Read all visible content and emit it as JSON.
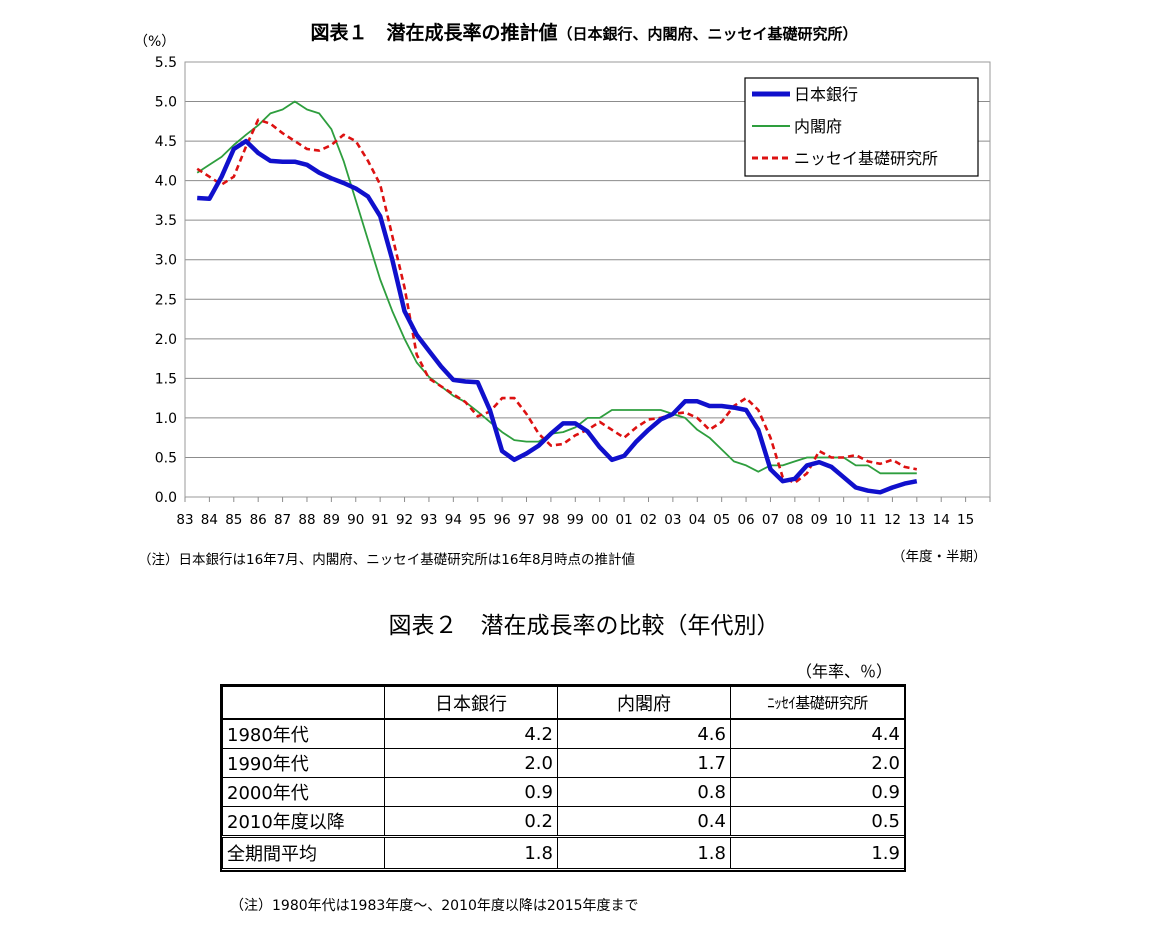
{
  "chart1": {
    "title_main": "図表１　潜在成長率の推計値",
    "title_sub": "（日本銀行、内閣府、ニッセイ基礎研究所）",
    "y_unit": "（%）",
    "x_unit": "（年度・半期）",
    "note": "（注）日本銀行は16年7月、内閣府、ニッセイ基礎研究所は16年8月時点の推計値",
    "colors": {
      "boj": "#1010cc",
      "cabinet": "#2e9e3e",
      "nissay": "#dd1111"
    }
  },
  "chart_data": {
    "type": "line",
    "x_tick_labels": [
      "83",
      "84",
      "85",
      "86",
      "87",
      "88",
      "89",
      "90",
      "91",
      "92",
      "93",
      "94",
      "95",
      "96",
      "97",
      "98",
      "99",
      "00",
      "01",
      "02",
      "03",
      "04",
      "05",
      "06",
      "07",
      "08",
      "09",
      "10",
      "11",
      "12",
      "13",
      "14",
      "15"
    ],
    "x_unit_note": "half-year index starting 1983H1",
    "ylim": [
      0,
      5.5
    ],
    "y_ticks": [
      "0.0",
      "0.5",
      "1.0",
      "1.5",
      "2.0",
      "2.5",
      "3.0",
      "3.5",
      "4.0",
      "4.5",
      "5.0",
      "5.5"
    ],
    "grid": true,
    "legend_position": "top-right",
    "series": [
      {
        "name": "日本銀行",
        "values": [
          3.78,
          3.77,
          4.05,
          4.4,
          4.5,
          4.35,
          4.25,
          4.24,
          4.24,
          4.2,
          4.1,
          4.03,
          3.97,
          3.9,
          3.8,
          3.55,
          3.0,
          2.35,
          2.05,
          1.85,
          1.65,
          1.48,
          1.46,
          1.45,
          1.1,
          0.58,
          0.47,
          0.55,
          0.65,
          0.8,
          0.93,
          0.93,
          0.83,
          0.63,
          0.47,
          0.52,
          0.7,
          0.85,
          0.98,
          1.05,
          1.21,
          1.21,
          1.15,
          1.15,
          1.13,
          1.1,
          0.85,
          0.35,
          0.2,
          0.23,
          0.4,
          0.44,
          0.38,
          0.25,
          0.12,
          0.08,
          0.06,
          0.12,
          0.17,
          0.2
        ]
      },
      {
        "name": "内閣府",
        "values": [
          4.1,
          4.2,
          4.3,
          4.45,
          4.58,
          4.7,
          4.85,
          4.9,
          5.0,
          4.9,
          4.85,
          4.65,
          4.25,
          3.75,
          3.25,
          2.75,
          2.35,
          2.0,
          1.7,
          1.52,
          1.4,
          1.28,
          1.2,
          1.08,
          0.95,
          0.82,
          0.72,
          0.7,
          0.7,
          0.8,
          0.82,
          0.88,
          1.0,
          1.0,
          1.1,
          1.1,
          1.1,
          1.1,
          1.1,
          1.05,
          1.0,
          0.85,
          0.75,
          0.6,
          0.45,
          0.4,
          0.32,
          0.4,
          0.4,
          0.45,
          0.5,
          0.5,
          0.5,
          0.5,
          0.4,
          0.4,
          0.3,
          0.3,
          0.3,
          0.3
        ]
      },
      {
        "name": "ニッセイ基礎研究所",
        "values": [
          4.15,
          4.05,
          3.95,
          4.05,
          4.43,
          4.77,
          4.72,
          4.6,
          4.5,
          4.4,
          4.38,
          4.45,
          4.58,
          4.5,
          4.25,
          3.95,
          3.3,
          2.65,
          1.8,
          1.5,
          1.4,
          1.3,
          1.2,
          1.02,
          1.08,
          1.25,
          1.25,
          1.05,
          0.8,
          0.65,
          0.67,
          0.78,
          0.85,
          0.95,
          0.85,
          0.75,
          0.88,
          0.98,
          1.0,
          1.05,
          1.07,
          1.0,
          0.85,
          0.95,
          1.15,
          1.25,
          1.1,
          0.75,
          0.25,
          0.18,
          0.3,
          0.58,
          0.5,
          0.5,
          0.53,
          0.45,
          0.42,
          0.47,
          0.38,
          0.35
        ]
      }
    ]
  },
  "chart2": {
    "title": "図表２　潜在成長率の比較（年代別）",
    "unit": "（年率、％）",
    "headers": [
      "",
      "日本銀行",
      "内閣府",
      "ﾆｯｾｲ基礎研究所"
    ],
    "rows": [
      [
        "1980年代",
        "4.2",
        "4.6",
        "4.4"
      ],
      [
        "1990年代",
        "2.0",
        "1.7",
        "2.0"
      ],
      [
        "2000年代",
        "0.9",
        "0.8",
        "0.9"
      ],
      [
        "2010年度以降",
        "0.2",
        "0.4",
        "0.5"
      ],
      [
        "全期間平均",
        "1.8",
        "1.8",
        "1.9"
      ]
    ],
    "note": "（注）1980年代は1983年度～、2010年度以降は2015年度まで"
  }
}
